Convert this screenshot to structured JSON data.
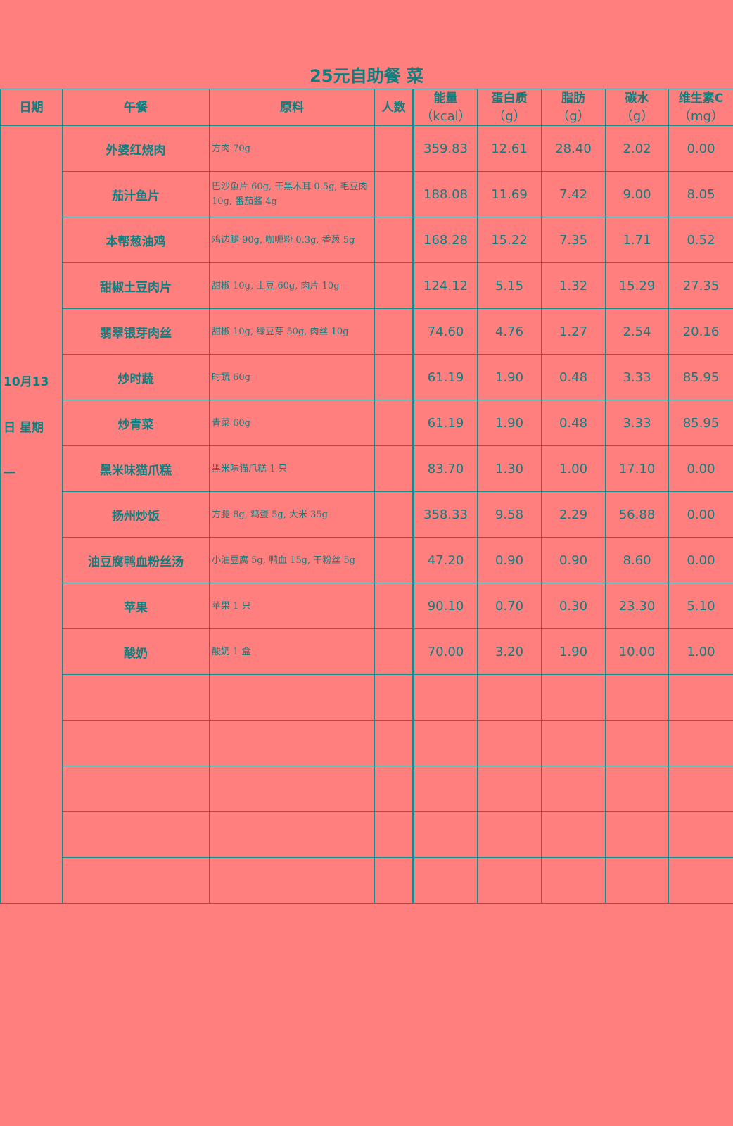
{
  "title": "25元自助餐 菜",
  "headers": {
    "date": "日期",
    "lunch": "午餐",
    "ingredients": "原料",
    "people": "人数",
    "energy": "能量",
    "energy_unit": "（kcal）",
    "protein": "蛋白质",
    "protein_unit": "（g）",
    "fat": "脂肪",
    "fat_unit": "（g）",
    "carbs": "碳水",
    "carbs_unit": "（g）",
    "vitc": "维生素C",
    "vitc_unit": "（mg）"
  },
  "date": "10月13日 星期一",
  "rows": [
    {
      "dish": "外婆红烧肉",
      "ingredients": "方肉 70g",
      "people": "",
      "energy": "359.83",
      "protein": "12.61",
      "fat": "28.40",
      "carbs": "2.02",
      "vitc": "0.00"
    },
    {
      "dish": "茄汁鱼片",
      "ingredients": "巴沙鱼片 60g, 干黑木耳 0.5g, 毛豆肉 10g, 番茄酱 4g",
      "people": "",
      "energy": "188.08",
      "protein": "11.69",
      "fat": "7.42",
      "carbs": "9.00",
      "vitc": "8.05"
    },
    {
      "dish": "本帮葱油鸡",
      "ingredients": "鸡边腿 90g, 咖喱粉 0.3g, 香葱 5g",
      "people": "",
      "energy": "168.28",
      "protein": "15.22",
      "fat": "7.35",
      "carbs": "1.71",
      "vitc": "0.52"
    },
    {
      "dish": "甜椒土豆肉片",
      "ingredients": "甜椒 10g, 土豆 60g, 肉片 10g",
      "people": "",
      "energy": "124.12",
      "protein": "5.15",
      "fat": "1.32",
      "carbs": "15.29",
      "vitc": "27.35"
    },
    {
      "dish": "翡翠银芽肉丝",
      "ingredients": "甜椒 10g, 绿豆芽 50g, 肉丝 10g",
      "people": "",
      "energy": "74.60",
      "protein": "4.76",
      "fat": "1.27",
      "carbs": "2.54",
      "vitc": "20.16"
    },
    {
      "dish": "炒时蔬",
      "ingredients": "时蔬 60g",
      "people": "",
      "energy": "61.19",
      "protein": "1.90",
      "fat": "0.48",
      "carbs": "3.33",
      "vitc": "85.95"
    },
    {
      "dish": "炒青菜",
      "ingredients": "青菜 60g",
      "people": "",
      "energy": "61.19",
      "protein": "1.90",
      "fat": "0.48",
      "carbs": "3.33",
      "vitc": "85.95"
    },
    {
      "dish": "黑米味猫爪糕",
      "ingredients": "黑米味猫爪糕 1 只",
      "people": "",
      "energy": "83.70",
      "protein": "1.30",
      "fat": "1.00",
      "carbs": "17.10",
      "vitc": "0.00"
    },
    {
      "dish": "扬州炒饭",
      "ingredients": "方腿 8g, 鸡蛋 5g, 大米 35g",
      "people": "",
      "energy": "358.33",
      "protein": "9.58",
      "fat": "2.29",
      "carbs": "56.88",
      "vitc": "0.00"
    },
    {
      "dish": "油豆腐鸭血粉丝汤",
      "ingredients": "小油豆腐 5g, 鸭血 15g, 干粉丝 5g",
      "people": "",
      "energy": "47.20",
      "protein": "0.90",
      "fat": "0.90",
      "carbs": "8.60",
      "vitc": "0.00"
    },
    {
      "dish": "苹果",
      "ingredients": "苹果 1 只",
      "people": "",
      "energy": "90.10",
      "protein": "0.70",
      "fat": "0.30",
      "carbs": "23.30",
      "vitc": "5.10"
    },
    {
      "dish": "酸奶",
      "ingredients": "酸奶 1 盒",
      "people": "",
      "energy": "70.00",
      "protein": "3.20",
      "fat": "1.90",
      "carbs": "10.00",
      "vitc": "1.00"
    },
    {
      "dish": "",
      "ingredients": "",
      "people": "",
      "energy": "",
      "protein": "",
      "fat": "",
      "carbs": "",
      "vitc": ""
    },
    {
      "dish": "",
      "ingredients": "",
      "people": "",
      "energy": "",
      "protein": "",
      "fat": "",
      "carbs": "",
      "vitc": ""
    },
    {
      "dish": "",
      "ingredients": "",
      "people": "",
      "energy": "",
      "protein": "",
      "fat": "",
      "carbs": "",
      "vitc": ""
    },
    {
      "dish": "",
      "ingredients": "",
      "people": "",
      "energy": "",
      "protein": "",
      "fat": "",
      "carbs": "",
      "vitc": ""
    },
    {
      "dish": "",
      "ingredients": "",
      "people": "",
      "energy": "",
      "protein": "",
      "fat": "",
      "carbs": "",
      "vitc": ""
    }
  ],
  "colors": {
    "background": "#ff7f7f",
    "text": "#0e7f7f",
    "border": "#178a8a"
  }
}
